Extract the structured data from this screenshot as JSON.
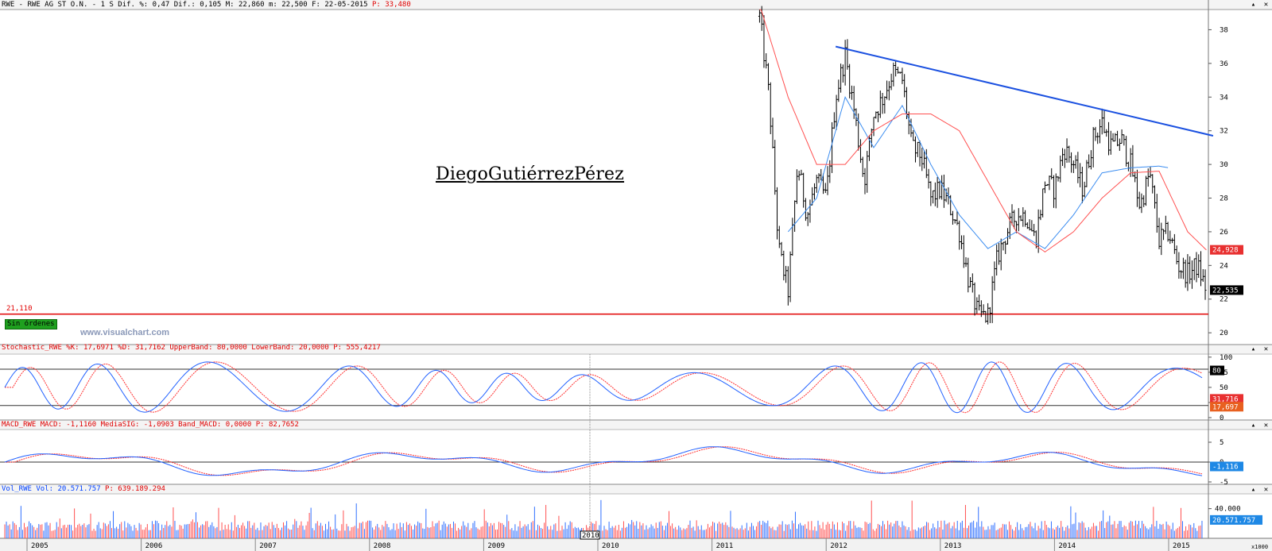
{
  "header": {
    "top_prefix": "RWE - RWE AG ST O.N. -  1 S Dif. %: 0,47 Dif.: 0,105 M: 22,860 m: 22,500 F: 22-05-2015 ",
    "top_p": "P: 33,480",
    "stoch_prefix": "Stochastic_RWE %K: 17,6971 %D: 31,7162 UpperBand: 80,0000 LowerBand: 20,0000 ",
    "stoch_p": "P: 555,4217",
    "macd_prefix": "MACD_RWE MACD: -1,1160 MediaSIG: -1,0903 Band_MACD: 0,0000 ",
    "macd_p": "P: 82,7652",
    "vol_prefix": "Vol_RWE Vol: 20.571.757 ",
    "vol_p": "P: 639.189.294"
  },
  "watermark": "DiegoGutiérrezPérez",
  "site": "www.visualchart.com",
  "status_box": "Sin órdenes",
  "support_label": "21,110",
  "price_badges": {
    "sma_red": "24,928",
    "last": "22,535"
  },
  "stoch_badges": {
    "upper": "80",
    "d": "31,716",
    "k": "17,697"
  },
  "macd_badge": "-1,116",
  "vol_badge": "20.571.757",
  "vol_ticklabel": "40.000",
  "vol_scale_note": "x1000",
  "cursor_label": "2010",
  "colors": {
    "price_bar": "#000000",
    "ma_fast": "#3a8cf0",
    "ma_slow": "#ff5050",
    "trendline": "#1a50e0",
    "support": "#e00000",
    "stoch_k": "#2060ff",
    "stoch_d": "#ff3030",
    "vol_blue": "#3070ff",
    "vol_red": "#ff5050"
  },
  "chart_data": [
    {
      "type": "candlestick",
      "title": "RWE - RWE AG ST O.N.",
      "x_ticks": [
        "2005",
        "2006",
        "2007",
        "2008",
        "2009",
        "2010",
        "2011",
        "2012",
        "2013",
        "2014",
        "2015"
      ],
      "y_ticks": [
        20,
        22,
        24,
        26,
        28,
        30,
        32,
        34,
        36,
        38
      ],
      "ylim": [
        19.3,
        39.2
      ],
      "grid": false,
      "series": [
        {
          "name": "price",
          "x": [
            "2011-06",
            "2011-07",
            "2011-08",
            "2011-09",
            "2011-10",
            "2011-11",
            "2011-12",
            "2012-01",
            "2012-02",
            "2012-03",
            "2012-04",
            "2012-05",
            "2012-06",
            "2012-07",
            "2012-08",
            "2012-09",
            "2012-10",
            "2012-11",
            "2012-12",
            "2013-01",
            "2013-02",
            "2013-03",
            "2013-04",
            "2013-05",
            "2013-06",
            "2013-07",
            "2013-08",
            "2013-09",
            "2013-10",
            "2013-11",
            "2013-12",
            "2014-01",
            "2014-02",
            "2014-03",
            "2014-04",
            "2014-05",
            "2014-06",
            "2014-07",
            "2014-08",
            "2014-09",
            "2014-10",
            "2014-11",
            "2014-12",
            "2015-01",
            "2015-02",
            "2015-03",
            "2015-04",
            "2015-05"
          ],
          "y": [
            38.8,
            34,
            25,
            22.5,
            30,
            27,
            29,
            28,
            34,
            36.5,
            33,
            29,
            33,
            34,
            35.5,
            35,
            31,
            30.5,
            28,
            28.5,
            27.5,
            26,
            23,
            21,
            21,
            24.5,
            26,
            27,
            27,
            25.5,
            29,
            28.5,
            31,
            30,
            28.5,
            31.5,
            32.5,
            31,
            31.5,
            30,
            27.5,
            29.5,
            25.5,
            26,
            24,
            23.5,
            24,
            22.5
          ]
        },
        {
          "name": "fast_ma",
          "x": [
            "2011-09",
            "2011-12",
            "2012-03",
            "2012-06",
            "2012-09",
            "2012-12",
            "2013-03",
            "2013-06",
            "2013-09",
            "2013-12",
            "2014-03",
            "2014-06",
            "2014-09",
            "2014-12",
            "2015-01"
          ],
          "y": [
            26,
            28,
            34,
            31,
            33.5,
            30,
            27,
            25,
            26,
            25,
            27,
            29.5,
            29.8,
            29.9,
            29.8
          ]
        },
        {
          "name": "slow_ma",
          "x": [
            "2011-06",
            "2011-09",
            "2011-12",
            "2012-03",
            "2012-06",
            "2012-09",
            "2012-12",
            "2013-03",
            "2013-06",
            "2013-09",
            "2013-12",
            "2014-03",
            "2014-06",
            "2014-09",
            "2014-12",
            "2015-03",
            "2015-05"
          ],
          "y": [
            39.5,
            34,
            30,
            30,
            32,
            33,
            33,
            32,
            29,
            26,
            24.8,
            26,
            28,
            29.5,
            29.6,
            26,
            24.9
          ]
        }
      ],
      "annotations": [
        "trendline 37.0 (2012-02) to 31.7 (2015-02)",
        "support 21.11"
      ]
    },
    {
      "type": "line",
      "title": "Stochastic_RWE",
      "y_ticks": [
        0,
        25,
        50,
        75,
        100
      ],
      "bands": [
        20,
        80
      ],
      "series": [
        {
          "name": "%K",
          "last": 17.6971
        },
        {
          "name": "%D",
          "last": 31.7162
        }
      ]
    },
    {
      "type": "line",
      "title": "MACD_RWE",
      "y_ticks": [
        -5,
        0,
        5
      ],
      "series": [
        {
          "name": "MACD",
          "last": -1.116
        },
        {
          "name": "MediaSIG",
          "last": -1.0903
        }
      ]
    },
    {
      "type": "bar",
      "title": "Vol_RWE",
      "y_ticks": [
        "40.000"
      ],
      "series": [
        {
          "name": "Vol",
          "last": 20571757
        }
      ]
    }
  ]
}
